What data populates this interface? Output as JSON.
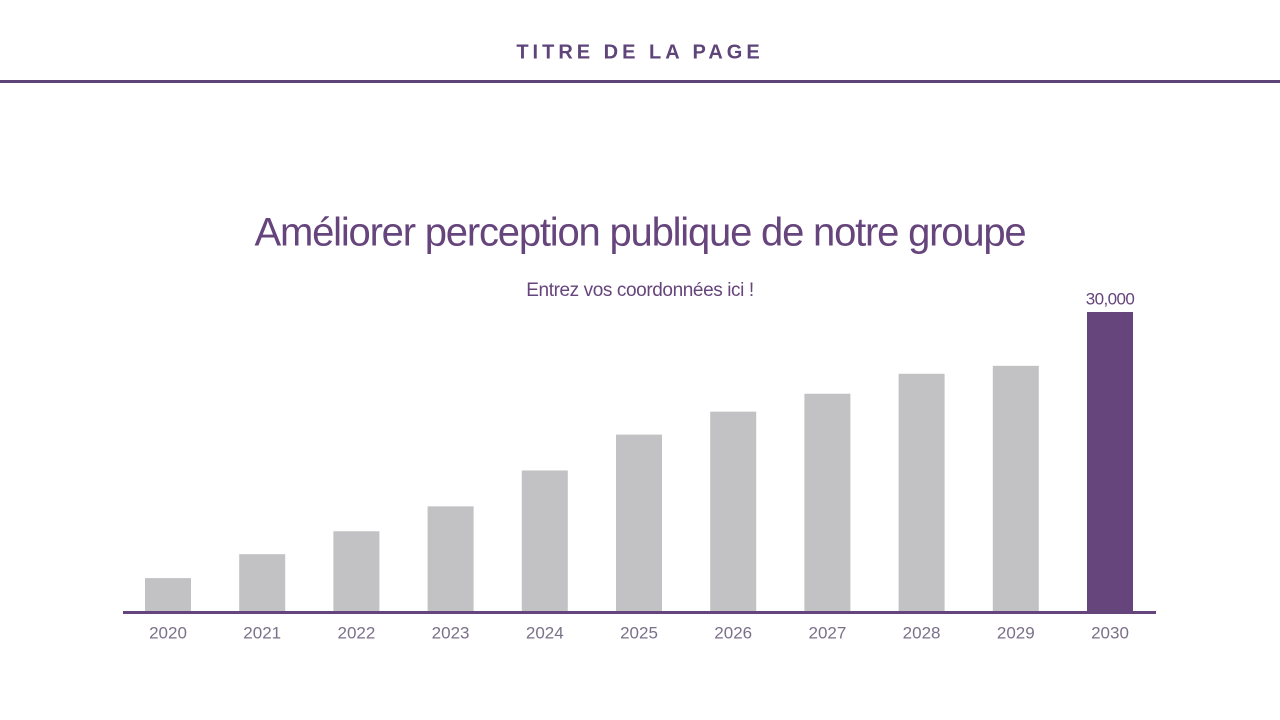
{
  "header": {
    "title": "TITRE DE LA PAGE"
  },
  "chart_data": {
    "type": "bar",
    "title": "Améliorer perception publique de notre groupe",
    "subtitle": "Entrez vos coordonnées ici !",
    "categories": [
      "2020",
      "2021",
      "2022",
      "2023",
      "2024",
      "2025",
      "2026",
      "2027",
      "2028",
      "2029",
      "2030"
    ],
    "values": [
      3300,
      5700,
      8000,
      10500,
      14100,
      17700,
      20000,
      21800,
      23800,
      24600,
      30000
    ],
    "value_labels": [
      null,
      null,
      null,
      null,
      null,
      null,
      null,
      null,
      null,
      null,
      "30,000"
    ],
    "colors": [
      "#c2c1c3",
      "#c2c1c3",
      "#c2c1c3",
      "#c2c1c3",
      "#c2c1c3",
      "#c2c1c3",
      "#c2c1c3",
      "#c2c1c3",
      "#c2c1c3",
      "#c2c1c3",
      "#66447c"
    ]
  }
}
